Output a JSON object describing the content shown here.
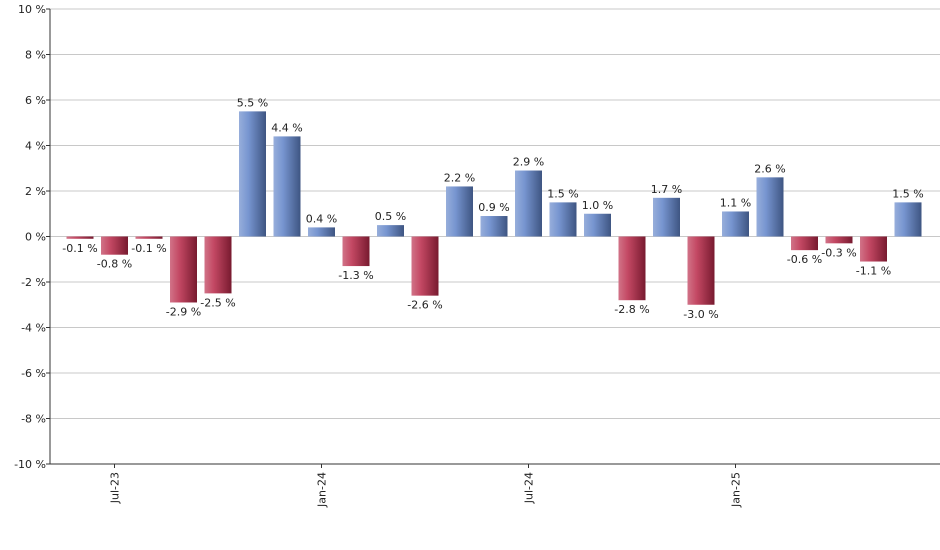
{
  "chart_data": {
    "type": "bar",
    "categories": [
      null,
      "Jul-23",
      null,
      null,
      null,
      null,
      null,
      "Jan-24",
      null,
      null,
      null,
      null,
      null,
      "Jul-24",
      null,
      null,
      null,
      null,
      null,
      "Jan-25",
      null,
      null,
      null,
      null,
      null
    ],
    "values": [
      -0.1,
      -0.8,
      -0.1,
      -2.9,
      -2.5,
      5.5,
      4.4,
      0.4,
      -1.3,
      0.5,
      -2.6,
      2.2,
      0.9,
      2.9,
      1.5,
      1.0,
      -2.8,
      1.7,
      -3.0,
      1.1,
      2.6,
      -0.6,
      -0.3,
      -1.1,
      1.5
    ],
    "value_labels": [
      "-0.1 %",
      "-0.8 %",
      "-0.1 %",
      "-2.9 %",
      "-2.5 %",
      "5.5 %",
      "4.4 %",
      "0.4 %",
      "-1.3 %",
      "0.5 %",
      "-2.6 %",
      "2.2 %",
      "0.9 %",
      "2.9 %",
      "1.5 %",
      "1.0 %",
      "-2.8 %",
      "1.7 %",
      "-3.0 %",
      "1.1 %",
      "2.6 %",
      "-0.6 %",
      "-0.3 %",
      "-1.1 %",
      "1.5 %"
    ],
    "positive_color": "#5f82c8",
    "negative_color": "#b82848",
    "ylim": [
      -10,
      10
    ],
    "yticks": [
      {
        "value": -10,
        "label": "-10 %"
      },
      {
        "value": -8,
        "label": "-8 %"
      },
      {
        "value": -6,
        "label": "-6 %"
      },
      {
        "value": -4,
        "label": "-4 %"
      },
      {
        "value": -2,
        "label": "-2 %"
      },
      {
        "value": 0,
        "label": "0 %"
      },
      {
        "value": 2,
        "label": "2 %"
      },
      {
        "value": 4,
        "label": "4 %"
      },
      {
        "value": 6,
        "label": "6 %"
      },
      {
        "value": 8,
        "label": "8 %"
      },
      {
        "value": 10,
        "label": "10 %"
      }
    ],
    "grid": true
  }
}
